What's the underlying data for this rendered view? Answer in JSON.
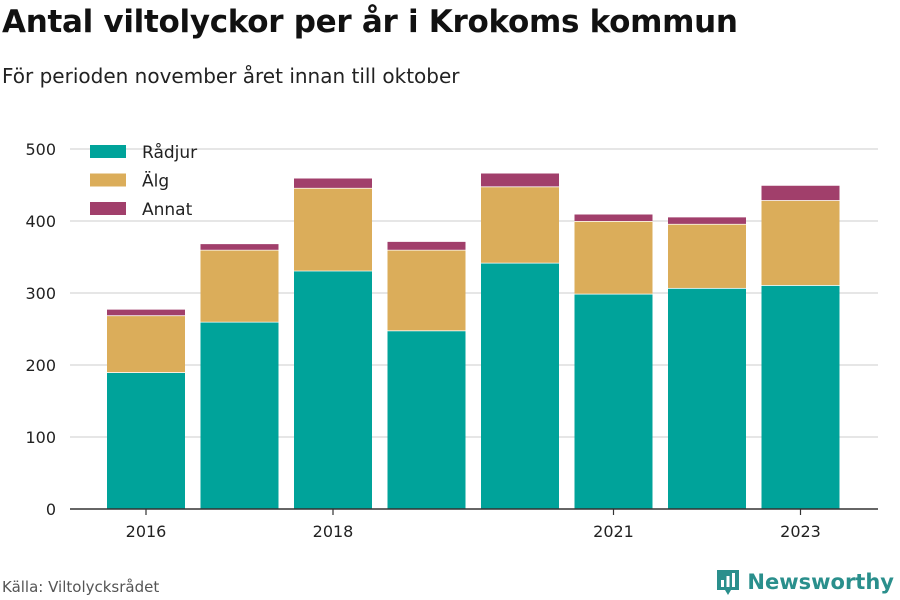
{
  "header": {
    "title": "Antal viltolyckor per år i Krokoms kommun",
    "subtitle": "För perioden november året innan till oktober"
  },
  "footer": {
    "source": "Källa: Viltolycksrådet",
    "brand": "Newsworthy",
    "brand_icon": "newsworthy-logo-icon"
  },
  "chart_data": {
    "type": "bar",
    "stacked": true,
    "categories": [
      "2016",
      "2017",
      "2018",
      "2019",
      "2020",
      "2021",
      "2022",
      "2023"
    ],
    "x_tick_labels": [
      "2016",
      "",
      "2018",
      "",
      "",
      "2021",
      "",
      "2023"
    ],
    "series": [
      {
        "name": "Rådjur",
        "color": "#00a39a",
        "values": [
          190,
          260,
          331,
          248,
          342,
          299,
          307,
          311
        ]
      },
      {
        "name": "Älg",
        "color": "#dbad5a",
        "values": [
          79,
          100,
          115,
          112,
          106,
          101,
          89,
          118
        ]
      },
      {
        "name": "Annat",
        "color": "#a13f6b",
        "values": [
          9,
          9,
          14,
          12,
          19,
          10,
          10,
          21
        ]
      }
    ],
    "y_ticks": [
      0,
      100,
      200,
      300,
      400,
      500
    ],
    "ylim": [
      0,
      500
    ],
    "grid": true,
    "legend_position": "top-left"
  }
}
